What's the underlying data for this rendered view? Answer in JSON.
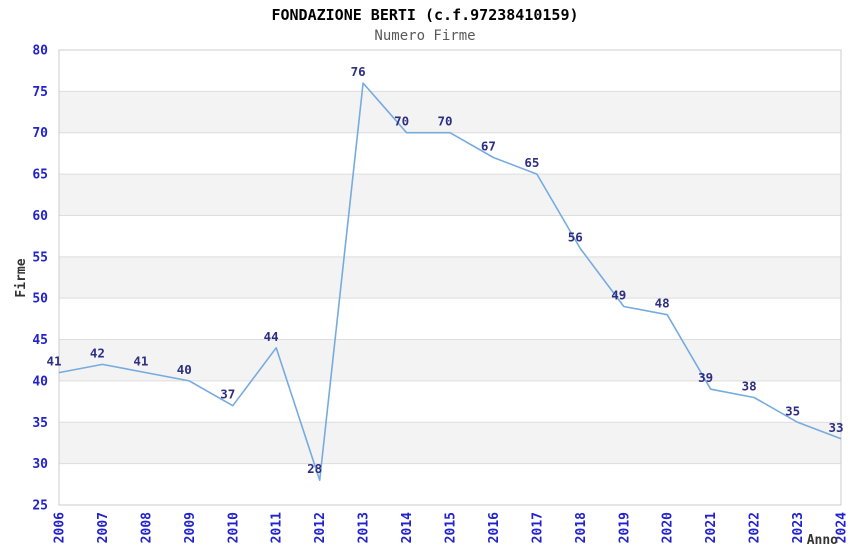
{
  "chart_data": {
    "type": "line",
    "title": "FONDAZIONE BERTI (c.f.97238410159)",
    "subtitle": "Numero Firme",
    "xlabel": "Anno",
    "ylabel": "Firme",
    "categories": [
      "2006",
      "2007",
      "2008",
      "2009",
      "2010",
      "2011",
      "2012",
      "2013",
      "2014",
      "2015",
      "2016",
      "2017",
      "2018",
      "2019",
      "2020",
      "2021",
      "2022",
      "2023",
      "2024"
    ],
    "values": [
      41,
      42,
      41,
      40,
      37,
      44,
      28,
      76,
      70,
      70,
      67,
      65,
      56,
      49,
      48,
      39,
      38,
      35,
      33
    ],
    "ylim": [
      25,
      80
    ],
    "ytick_step": 5,
    "grid": "horizontal",
    "legend": "none",
    "plot_bands": "alternating gray/white every 5 units",
    "colors": {
      "line": "#76abe0",
      "tick_label": "#2222cc",
      "data_label": "#2e2e82",
      "axis_title": "#333333",
      "title": "#000000",
      "subtitle": "#595959",
      "band_gray": "#f3f3f3",
      "gridline": "#dddddd",
      "border": "#cccccc",
      "background": "#ffffff"
    }
  }
}
